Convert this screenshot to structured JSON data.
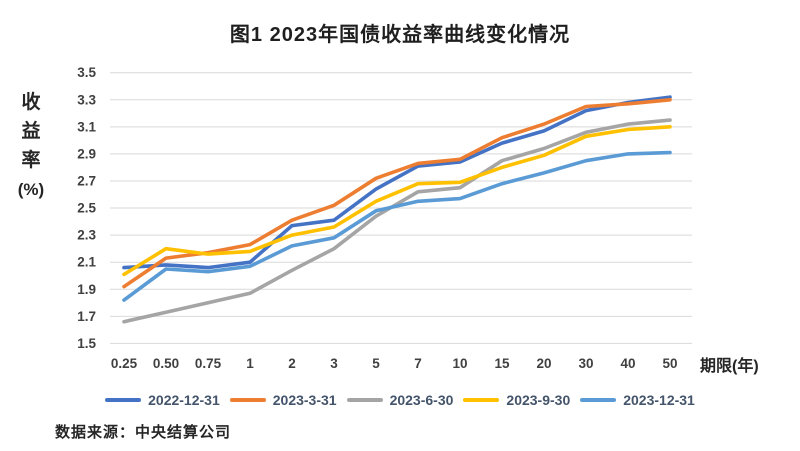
{
  "title": "图1 2023年国债收益率曲线变化情况",
  "y_axis": {
    "title_lines": [
      "收",
      "益",
      "率",
      "(%)"
    ],
    "ticks": [
      "3.5",
      "3.3",
      "3.1",
      "2.9",
      "2.7",
      "2.5",
      "2.3",
      "2.1",
      "1.9",
      "1.7",
      "1.5"
    ],
    "min": 1.5,
    "max": 3.5
  },
  "x_axis": {
    "unit": "期限(年)",
    "categories": [
      "0.25",
      "0.50",
      "0.75",
      "1",
      "2",
      "3",
      "5",
      "7",
      "10",
      "15",
      "20",
      "30",
      "40",
      "50"
    ]
  },
  "source": "数据来源：中央结算公司",
  "grid_color": "#d9d9d9",
  "tick_color": "#404040",
  "chart_data": {
    "type": "line",
    "title": "图1 2023年国债收益率曲线变化情况",
    "xlabel": "期限(年)",
    "ylabel": "收益率(%)",
    "ylim": [
      1.5,
      3.5
    ],
    "ytick_step": 0.2,
    "grid": true,
    "legend_position": "bottom",
    "categories": [
      "0.25",
      "0.50",
      "0.75",
      "1",
      "2",
      "3",
      "5",
      "7",
      "10",
      "15",
      "20",
      "30",
      "40",
      "50"
    ],
    "series": [
      {
        "name": "2022-12-31",
        "color": "#4472C4",
        "values": [
          2.06,
          2.08,
          2.06,
          2.1,
          2.37,
          2.41,
          2.64,
          2.81,
          2.84,
          2.98,
          3.07,
          3.22,
          3.28,
          3.32
        ]
      },
      {
        "name": "2023-3-31",
        "color": "#ED7D31",
        "values": [
          1.92,
          2.13,
          2.17,
          2.23,
          2.41,
          2.52,
          2.72,
          2.83,
          2.86,
          3.02,
          3.12,
          3.25,
          3.27,
          3.3
        ]
      },
      {
        "name": "2023-6-30",
        "color": "#A5A5A5",
        "values": [
          1.66,
          1.73,
          1.8,
          1.87,
          2.04,
          2.2,
          2.44,
          2.62,
          2.65,
          2.85,
          2.94,
          3.06,
          3.12,
          3.15
        ]
      },
      {
        "name": "2023-9-30",
        "color": "#FFC000",
        "values": [
          2.01,
          2.2,
          2.16,
          2.18,
          2.3,
          2.36,
          2.55,
          2.68,
          2.69,
          2.8,
          2.89,
          3.03,
          3.08,
          3.1
        ]
      },
      {
        "name": "2023-12-31",
        "color": "#5B9BD5",
        "values": [
          1.82,
          2.05,
          2.03,
          2.07,
          2.22,
          2.28,
          2.48,
          2.55,
          2.57,
          2.68,
          2.76,
          2.85,
          2.9,
          2.91
        ]
      }
    ]
  }
}
